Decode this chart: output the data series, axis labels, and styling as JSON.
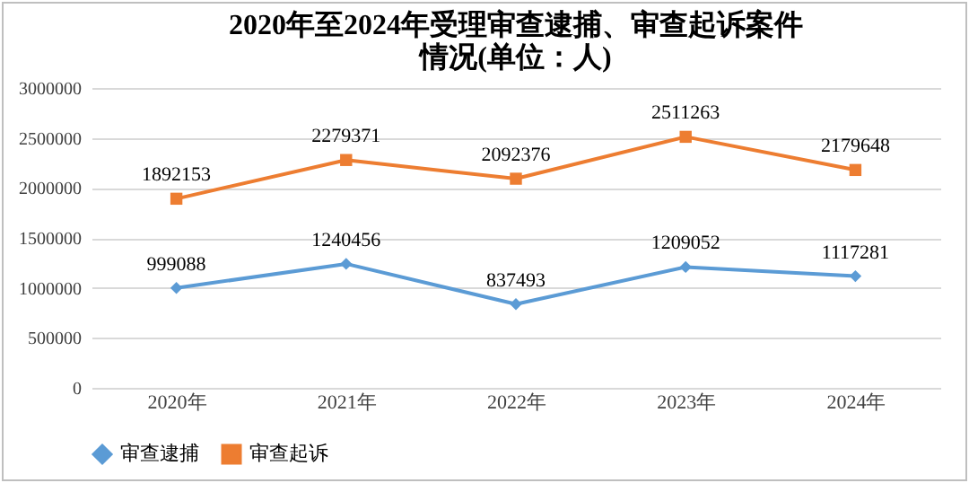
{
  "chart_data": {
    "type": "line",
    "title": "2020年至2024年受理审查逮捕、审查起诉案件情况(单位：人)",
    "categories": [
      "2020年",
      "2021年",
      "2022年",
      "2023年",
      "2024年"
    ],
    "series": [
      {
        "name": "审查逮捕",
        "color": "#5b9bd5",
        "marker": "diamond",
        "values": [
          999088,
          1240456,
          837493,
          1209052,
          1117281
        ]
      },
      {
        "name": "审查起诉",
        "color": "#ed7d31",
        "marker": "square",
        "values": [
          1892153,
          2279371,
          2092376,
          2511263,
          2179648
        ]
      }
    ],
    "ylim": [
      0,
      3000000
    ],
    "yticks": [
      0,
      500000,
      1000000,
      1500000,
      2000000,
      2500000,
      3000000
    ],
    "grid": "y",
    "legend": "bottom",
    "data_labels": true
  }
}
